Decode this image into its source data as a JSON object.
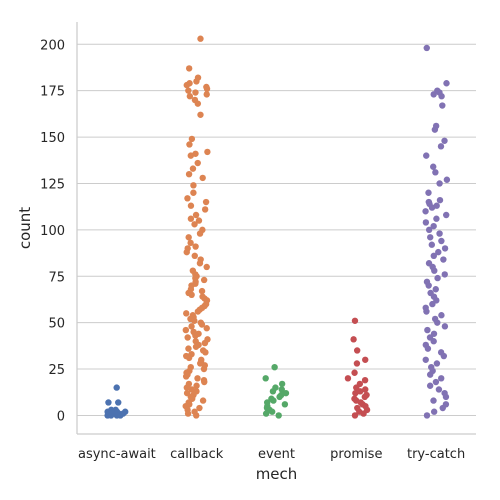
{
  "chart_data": {
    "type": "scatter",
    "style": "strip",
    "xlabel": "mech",
    "ylabel": "count",
    "ylim": [
      -10,
      212
    ],
    "yticks": [
      0,
      25,
      50,
      75,
      100,
      125,
      150,
      175,
      200
    ],
    "grid": "horizontal",
    "categories": [
      "async-await",
      "callback",
      "event",
      "promise",
      "try-catch"
    ],
    "colors": [
      "#4c72b0",
      "#dd8452",
      "#55a868",
      "#c44e52",
      "#8172b3"
    ],
    "series": [
      {
        "values": [
          15,
          7,
          7,
          3,
          3,
          2,
          2,
          2,
          1,
          1,
          1,
          1,
          0,
          0,
          0,
          0
        ]
      },
      {
        "values": [
          203,
          187,
          182,
          180,
          179,
          178,
          177,
          176,
          175,
          174,
          173,
          172,
          170,
          168,
          162,
          149,
          146,
          142,
          141,
          140,
          136,
          133,
          130,
          128,
          124,
          120,
          117,
          115,
          113,
          111,
          108,
          106,
          105,
          103,
          100,
          98,
          96,
          93,
          91,
          90,
          88,
          86,
          84,
          82,
          80,
          78,
          76,
          75,
          74,
          73,
          72,
          71,
          70,
          68,
          67,
          66,
          65,
          64,
          63,
          62,
          60,
          59,
          58,
          57,
          56,
          55,
          54,
          53,
          52,
          51,
          50,
          49,
          48,
          47,
          46,
          45,
          44,
          43,
          42,
          41,
          40,
          39,
          38,
          37,
          36,
          35,
          34,
          33,
          32,
          31,
          30,
          29,
          28,
          27,
          26,
          25,
          24,
          23,
          22,
          21,
          20,
          19,
          18,
          17,
          16,
          15,
          14,
          13,
          12,
          11,
          10,
          9,
          8,
          7,
          6,
          5,
          4,
          3,
          2,
          1,
          0
        ]
      },
      {
        "values": [
          26,
          20,
          17,
          15,
          14,
          13,
          12,
          11,
          10,
          9,
          8,
          7,
          6,
          5,
          4,
          3,
          2,
          1,
          0
        ]
      },
      {
        "values": [
          51,
          41,
          35,
          30,
          28,
          23,
          20,
          19,
          17,
          15,
          14,
          13,
          12,
          11,
          10,
          9,
          8,
          7,
          6,
          5,
          4,
          3,
          2,
          1,
          0
        ]
      },
      {
        "values": [
          198,
          179,
          175,
          174,
          173,
          172,
          167,
          156,
          154,
          148,
          145,
          140,
          134,
          131,
          127,
          125,
          120,
          116,
          115,
          114,
          113,
          112,
          110,
          108,
          106,
          104,
          102,
          100,
          98,
          96,
          94,
          92,
          90,
          88,
          86,
          84,
          82,
          80,
          78,
          76,
          74,
          72,
          70,
          68,
          66,
          64,
          62,
          60,
          58,
          56,
          54,
          52,
          50,
          48,
          46,
          44,
          42,
          40,
          38,
          36,
          34,
          32,
          30,
          28,
          26,
          24,
          22,
          20,
          18,
          16,
          14,
          12,
          10,
          8,
          6,
          4,
          2,
          0
        ]
      }
    ]
  }
}
